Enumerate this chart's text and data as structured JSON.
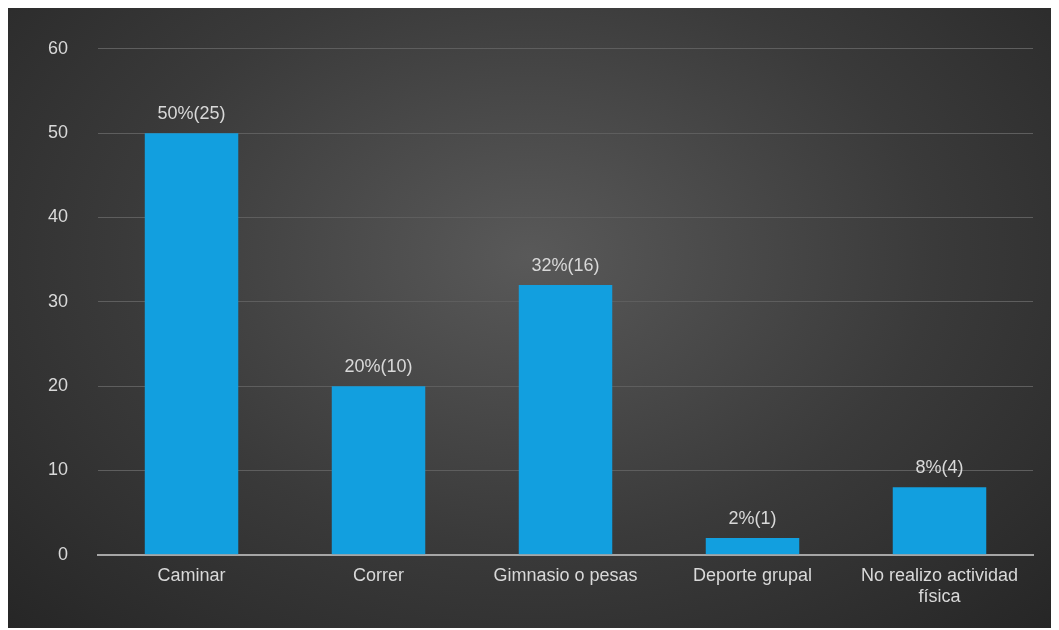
{
  "chart_data": {
    "type": "bar",
    "categories": [
      "Caminar",
      "Correr",
      "Gimnasio o pesas",
      "Deporte grupal",
      "No realizo actividad física"
    ],
    "values": [
      50,
      20,
      32,
      2,
      8
    ],
    "value_labels": [
      "50%(25)",
      "20%(10)",
      "32%(16)",
      "2%(1)",
      "8%(4)"
    ],
    "color": "#129fdf",
    "ylim": [
      0,
      60
    ],
    "yticks": [
      0,
      10,
      20,
      30,
      40,
      50,
      60
    ],
    "grid": "y",
    "legend": false
  }
}
